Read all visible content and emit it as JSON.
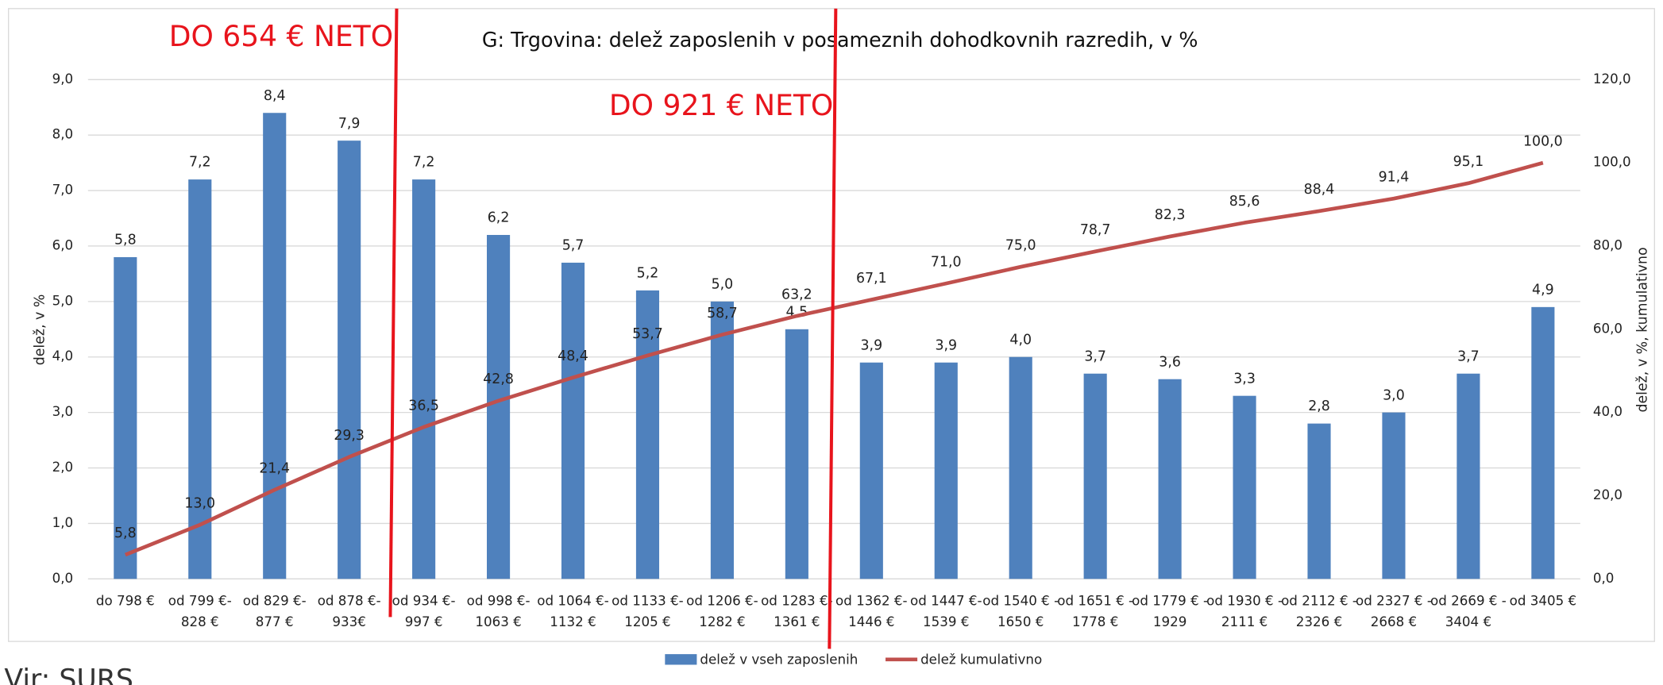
{
  "chart_data": {
    "type": "bar",
    "title": "G: Trgovina: delež zaposlenih v posameznih dohodkovnih razredih, v %",
    "ylabel": "delež, v %",
    "y2label": "delež, v %, kumulativno",
    "annotations": [
      "DO 654 € NETO",
      "DO 921 € NETO"
    ],
    "source": "Vir: SURS",
    "categories": [
      "do 798 €",
      "od 799 €-\n828 €",
      "od 829 €-\n877 €",
      "od 878 €-\n933€",
      "od 934 €-\n997 €",
      "od 998 €-\n1063 €",
      "od 1064 €-\n1132 €",
      "od 1133 €-\n1205 €",
      "od 1206 €-\n1282 €",
      "od 1283 €-\n1361 €",
      "od 1362 €-\n1446 €",
      "od 1447 €-\n1539 €",
      "od 1540 € -\n1650 €",
      "od 1651 € -\n1778 €",
      "od 1779 € -\n1929",
      "od 1930 € -\n2111 €",
      "od 2112 € -\n2326 €",
      "od 2327 € -\n2668 €",
      "od 2669 € -\n3404 €",
      "od 3405 €"
    ],
    "series": [
      {
        "name": "delež v vseh zaposlenih",
        "type": "bar",
        "color": "#4f81bd",
        "values": [
          5.8,
          7.2,
          8.4,
          7.9,
          7.2,
          6.2,
          5.7,
          5.2,
          5.0,
          4.5,
          3.9,
          3.9,
          4.0,
          3.7,
          3.6,
          3.3,
          2.8,
          3.0,
          3.7,
          4.9
        ],
        "value_labels": [
          "5,8",
          "7,2",
          "8,4",
          "7,9",
          "7,2",
          "6,2",
          "5,7",
          "5,2",
          "5,0",
          "4,5",
          "3,9",
          "3,9",
          "4,0",
          "3,7",
          "3,6",
          "3,3",
          "2,8",
          "3,0",
          "3,7",
          "4,9"
        ]
      },
      {
        "name": "delež kumulativno",
        "type": "line",
        "axis": "y2",
        "color": "#c0504d",
        "values": [
          5.8,
          13.0,
          21.4,
          29.3,
          36.5,
          42.8,
          48.4,
          53.7,
          58.7,
          63.2,
          67.1,
          71.0,
          75.0,
          78.7,
          82.3,
          85.6,
          88.4,
          91.4,
          95.1,
          100.0
        ],
        "value_labels": [
          "5,8",
          "13,0",
          "21,4",
          "29,3",
          "36,5",
          "42,8",
          "48,4",
          "53,7",
          "58,7",
          "63,2",
          "67,1",
          "71,0",
          "75,0",
          "78,7",
          "82,3",
          "85,6",
          "88,4",
          "91,4",
          "95,1",
          "100,0"
        ]
      }
    ],
    "ylim": [
      0,
      9
    ],
    "yticks": [
      {
        "value": 0,
        "label": "0,0"
      },
      {
        "value": 1,
        "label": "1,0"
      },
      {
        "value": 2,
        "label": "2,0"
      },
      {
        "value": 3,
        "label": "3,0"
      },
      {
        "value": 4,
        "label": "4,0"
      },
      {
        "value": 5,
        "label": "5,0"
      },
      {
        "value": 6,
        "label": "6,0"
      },
      {
        "value": 7,
        "label": "7,0"
      },
      {
        "value": 8,
        "label": "8,0"
      },
      {
        "value": 9,
        "label": "9,0"
      }
    ],
    "y2lim": [
      0,
      120
    ],
    "y2ticks": [
      {
        "value": 0,
        "label": "0,0"
      },
      {
        "value": 20,
        "label": "20,0"
      },
      {
        "value": 40,
        "label": "40,0"
      },
      {
        "value": 60,
        "label": "60,0"
      },
      {
        "value": 80,
        "label": "80,0"
      },
      {
        "value": 100,
        "label": "100,0"
      },
      {
        "value": 120,
        "label": "120,0"
      }
    ],
    "grid": true,
    "legend": "bottom"
  }
}
